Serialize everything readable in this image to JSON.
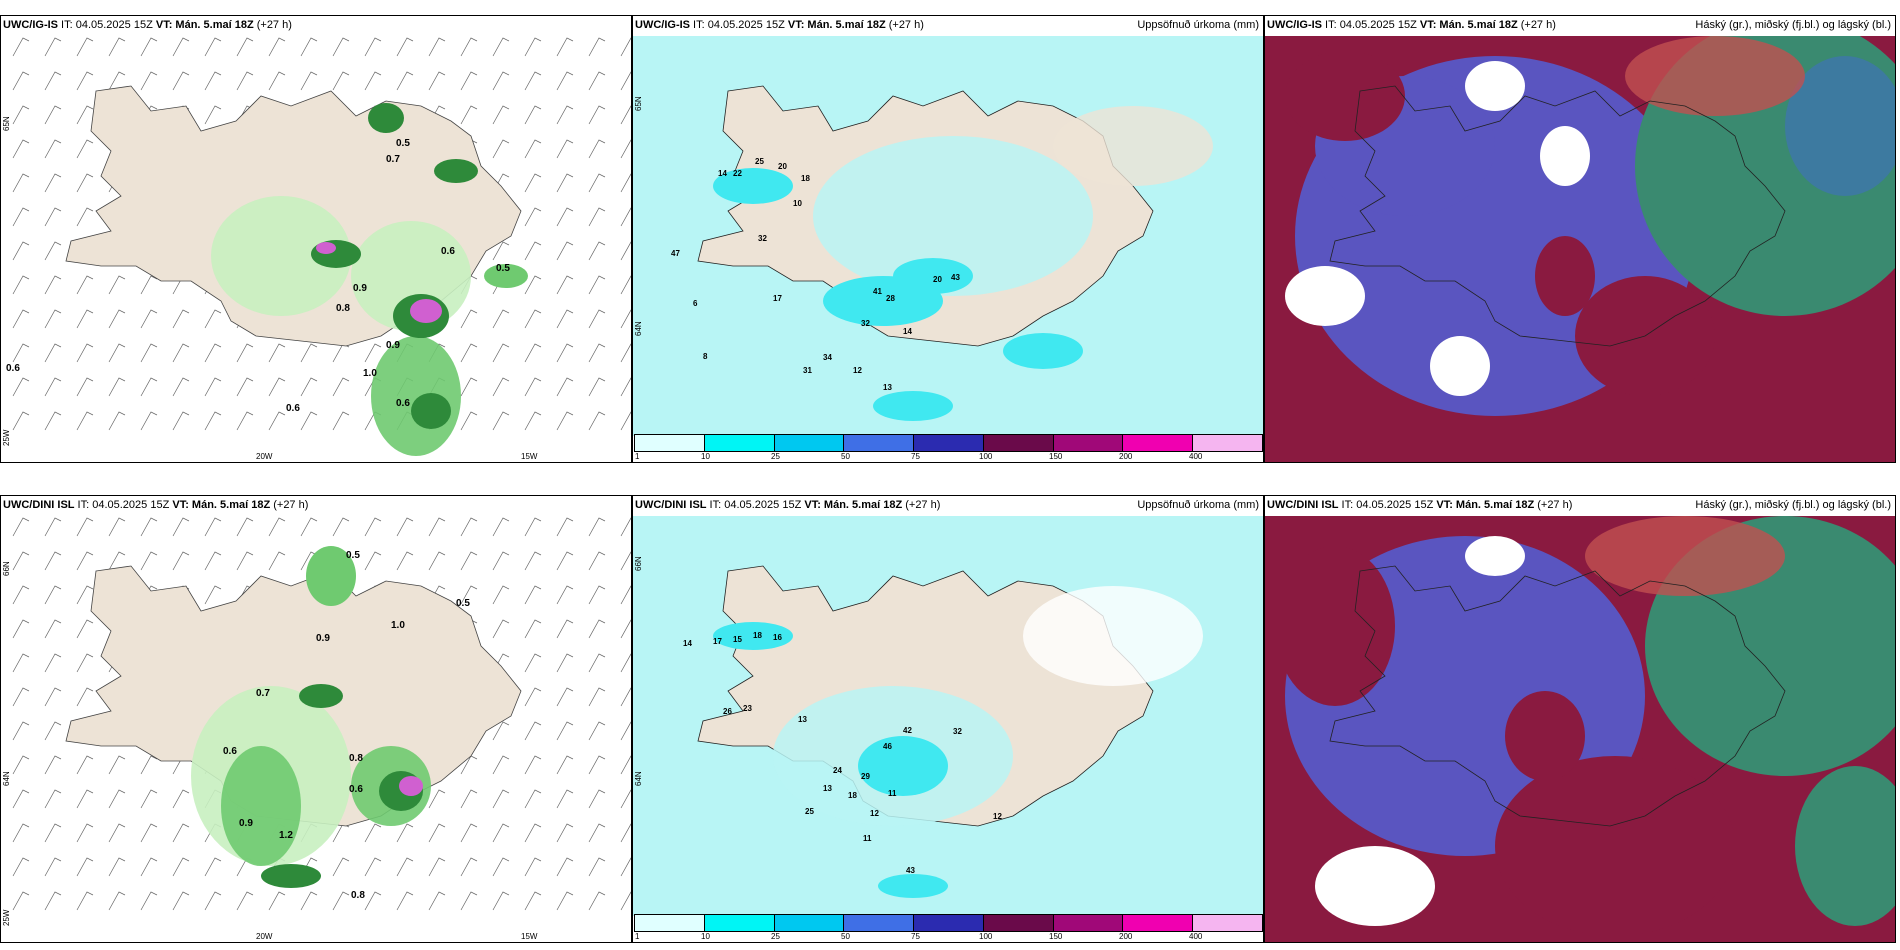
{
  "panels": [
    {
      "id": "p1",
      "model": "UWC/IG-IS",
      "it": " IT: 04.05.2025 15Z ",
      "vt_label": "VT: Mán. 5.maí 18Z",
      "lead": " (+27 h)",
      "right_title": "",
      "kind": "wind",
      "lat_labels": [
        "65N",
        "25W"
      ],
      "lon_labels": [
        "20W",
        "15W"
      ],
      "values": [
        "0.5",
        "0.7",
        "0.9",
        "0.6",
        "0.9",
        "1.0",
        "0.6",
        "0.8",
        "0.6",
        "0.5",
        "0.6"
      ]
    },
    {
      "id": "p2",
      "model": "UWC/IG-IS",
      "it": " IT: 04.05.2025 15Z ",
      "vt_label": "VT: Mán. 5.maí 18Z",
      "lead": " (+27 h)",
      "right_title": "Uppsöfnuð úrkoma (mm)",
      "kind": "precip",
      "lat_labels": [
        "65N",
        "64N"
      ],
      "lon_labels": [],
      "values": [
        "25",
        "20",
        "18",
        "14",
        "22",
        "10",
        "32",
        "41",
        "28",
        "20",
        "43",
        "17",
        "32",
        "14",
        "31",
        "34",
        "12",
        "13",
        "6",
        "8",
        "47"
      ]
    },
    {
      "id": "p3",
      "model": "UWC/IG-IS",
      "it": " IT: 04.05.2025 15Z ",
      "vt_label": "VT: Mán. 5.maí 18Z",
      "lead": " (+27 h)",
      "right_title": "Háský (gr.), miðský (fj.bl.) og lágský (bl.)",
      "kind": "cloud",
      "lat_labels": [],
      "lon_labels": [],
      "values": []
    },
    {
      "id": "p4",
      "model": "UWC/DINI ISL",
      "it": " IT: 04.05.2025 15Z ",
      "vt_label": "VT: Mán. 5.maí 18Z",
      "lead": " (+27 h)",
      "right_title": "",
      "kind": "wind",
      "lat_labels": [
        "66N",
        "64N",
        "25W"
      ],
      "lon_labels": [
        "20W",
        "15W"
      ],
      "values": [
        "0.5",
        "1.0",
        "0.9",
        "0.7",
        "0.6",
        "0.8",
        "0.6",
        "1.2",
        "0.8",
        "0.9",
        "0.5"
      ]
    },
    {
      "id": "p5",
      "model": "UWC/DINI ISL",
      "it": " IT: 04.05.2025 15Z ",
      "vt_label": "VT: Mán. 5.maí 18Z",
      "lead": " (+27 h)",
      "right_title": "Uppsöfnuð úrkoma (mm)",
      "kind": "precip",
      "lat_labels": [
        "66N",
        "64N"
      ],
      "lon_labels": [],
      "values": [
        "14",
        "17",
        "15",
        "18",
        "16",
        "26",
        "23",
        "13",
        "42",
        "46",
        "29",
        "24",
        "18",
        "25",
        "12",
        "11",
        "32",
        "11",
        "12",
        "13",
        "43"
      ]
    },
    {
      "id": "p6",
      "model": "UWC/DINI ISL",
      "it": " IT: 04.05.2025 15Z ",
      "vt_label": "VT: Mán. 5.maí 18Z",
      "lead": " (+27 h)",
      "right_title": "Háský (gr.), miðský (fj.bl.) og lágský (bl.)",
      "kind": "cloud",
      "lat_labels": [],
      "lon_labels": [],
      "values": []
    }
  ],
  "legend": {
    "ticks": [
      "1",
      "10",
      "25",
      "50",
      "75",
      "100",
      "150",
      "200",
      "400"
    ],
    "colors": [
      "#e0ffff",
      "#00f5f5",
      "#00c8f0",
      "#3f6fe6",
      "#2b2bb0",
      "#6a0a4a",
      "#a00878",
      "#f000b0",
      "#f5b5f0"
    ]
  },
  "colors": {
    "land": "#ede3d6",
    "precip_light": "#b8f5f5",
    "precip_mid": "#40e8f0",
    "green_light": "#c8f0c0",
    "green_mid": "#6fca70",
    "green_dark": "#2e8a3a",
    "magenta": "#d060d0",
    "cloud_blue": "#5a55c0",
    "cloud_maroon": "#8a1a40",
    "cloud_green": "#3a8a70"
  }
}
